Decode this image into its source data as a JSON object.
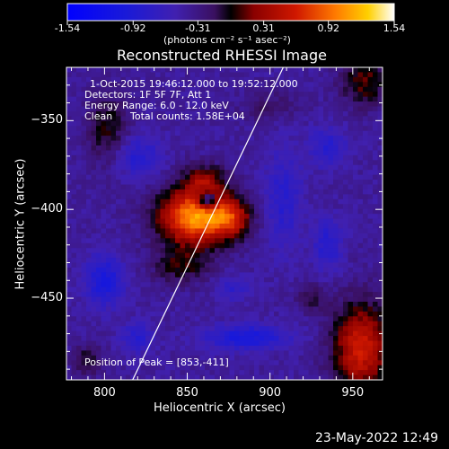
{
  "footer": {
    "timestamp": "23-May-2022 12:49"
  },
  "colorbar": {
    "ticks": [
      "-1.54",
      "-0.92",
      "-0.31",
      "0.31",
      "0.92",
      "1.54"
    ],
    "tick_values": [
      -1.54,
      -0.92,
      -0.31,
      0.31,
      0.92,
      1.54
    ],
    "range": [
      -1.54,
      1.54
    ],
    "unit_label": "(photons cm⁻² s⁻¹ asec⁻²)"
  },
  "chart_data": {
    "type": "heatmap",
    "title": "Reconstructed RHESSI Image",
    "xlabel": "Heliocentric X (arcsec)",
    "ylabel": "Heliocentric Y (arcsec)",
    "xlim": [
      777,
      968
    ],
    "ylim": [
      -496,
      -320
    ],
    "x_ticks": [
      800,
      850,
      900,
      950
    ],
    "y_ticks": [
      -350,
      -400,
      -450
    ],
    "x_tick_labels": [
      "800",
      "850",
      "900",
      "950"
    ],
    "y_tick_labels": [
      "−350",
      "−400",
      "−450"
    ],
    "annotations": {
      "time_range": "1-Oct-2015 19:46:12.000 to 19:52:12.000",
      "detectors": "Detectors: 1F 5F 7F, Att 1",
      "energy": "Energy Range: 6.0 - 12.0 keV",
      "clean": "Clean",
      "total_counts": "Total counts: 1.58E+04",
      "peak_position": "Position of Peak = [853,-411]"
    },
    "peak": [
      853,
      -411
    ],
    "limb_line": [
      [
        817,
        -496
      ],
      [
        908,
        -320
      ]
    ],
    "sources": [
      {
        "x": 856,
        "y": -404,
        "sx": 16,
        "sy": 11,
        "amp": 1.55
      },
      {
        "x": 877,
        "y": -405,
        "sx": 8,
        "sy": 7,
        "amp": 0.6
      },
      {
        "x": 860,
        "y": -383,
        "sx": 9,
        "sy": 6,
        "amp": 0.55
      },
      {
        "x": 846,
        "y": -432,
        "sx": 12,
        "sy": 7,
        "amp": 0.45
      },
      {
        "x": 955,
        "y": -478,
        "sx": 12,
        "sy": 18,
        "amp": 1.0
      },
      {
        "x": 957,
        "y": -328,
        "sx": 10,
        "sy": 10,
        "amp": 0.55
      },
      {
        "x": 802,
        "y": -355,
        "sx": 9,
        "sy": 14,
        "amp": 0.45
      },
      {
        "x": 900,
        "y": -342,
        "sx": 12,
        "sy": 6,
        "amp": 0.25
      },
      {
        "x": 925,
        "y": -450,
        "sx": 7,
        "sy": 5,
        "amp": 0.35
      },
      {
        "x": 790,
        "y": -485,
        "sx": 6,
        "sy": 6,
        "amp": 0.4
      },
      {
        "x": 862,
        "y": -395,
        "sx": 4,
        "sy": 3.5,
        "amp": -0.95
      },
      {
        "x": 908,
        "y": -395,
        "sx": 8,
        "sy": 20,
        "amp": -0.4
      },
      {
        "x": 820,
        "y": -370,
        "sx": 10,
        "sy": 8,
        "amp": -0.45
      },
      {
        "x": 800,
        "y": -440,
        "sx": 8,
        "sy": 10,
        "amp": -0.6
      },
      {
        "x": 820,
        "y": -472,
        "sx": 7,
        "sy": 6,
        "amp": -0.4
      },
      {
        "x": 886,
        "y": -472,
        "sx": 18,
        "sy": 5,
        "amp": -0.6
      },
      {
        "x": 935,
        "y": -420,
        "sx": 6,
        "sy": 10,
        "amp": -0.45
      },
      {
        "x": 935,
        "y": -365,
        "sx": 8,
        "sy": 8,
        "amp": -0.4
      },
      {
        "x": 878,
        "y": -445,
        "sx": 8,
        "sy": 5,
        "amp": -0.3
      }
    ],
    "background": -0.42
  }
}
